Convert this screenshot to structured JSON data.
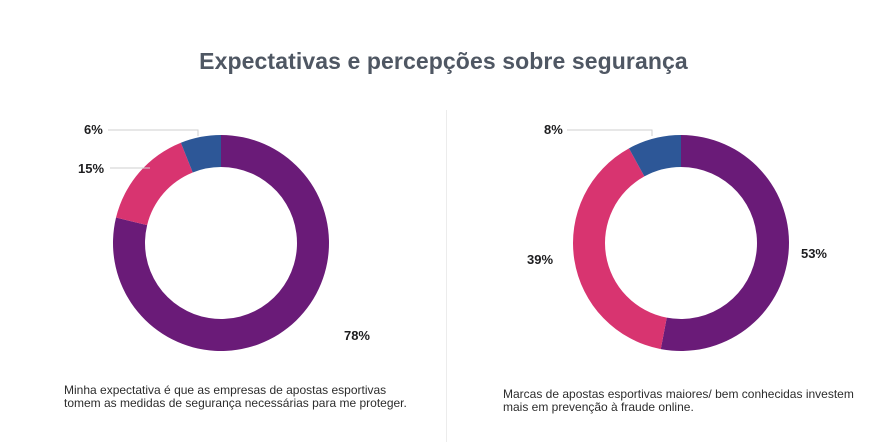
{
  "title": "Expectativas e percepções sobre segurança",
  "colors": {
    "purple": "#6a1b78",
    "pink": "#d83470",
    "blue": "#2d5797",
    "leader": "#cfcfcf"
  },
  "chart_data": [
    {
      "type": "pie",
      "donut": true,
      "caption": "Minha expectativa é que as empresas de apostas esportivas tomem as medidas de segurança necessárias para me proteger.",
      "slices": [
        {
          "label": "78%",
          "value": 78,
          "color": "#6a1b78"
        },
        {
          "label": "15%",
          "value": 15,
          "color": "#d83470"
        },
        {
          "label": "6%",
          "value": 6,
          "color": "#2d5797"
        }
      ]
    },
    {
      "type": "pie",
      "donut": true,
      "caption": "Marcas de apostas esportivas maiores/ bem conhecidas investem mais em prevenção à fraude online.",
      "slices": [
        {
          "label": "53%",
          "value": 53,
          "color": "#6a1b78"
        },
        {
          "label": "39%",
          "value": 39,
          "color": "#d83470"
        },
        {
          "label": "8%",
          "value": 8,
          "color": "#2d5797"
        }
      ]
    }
  ]
}
